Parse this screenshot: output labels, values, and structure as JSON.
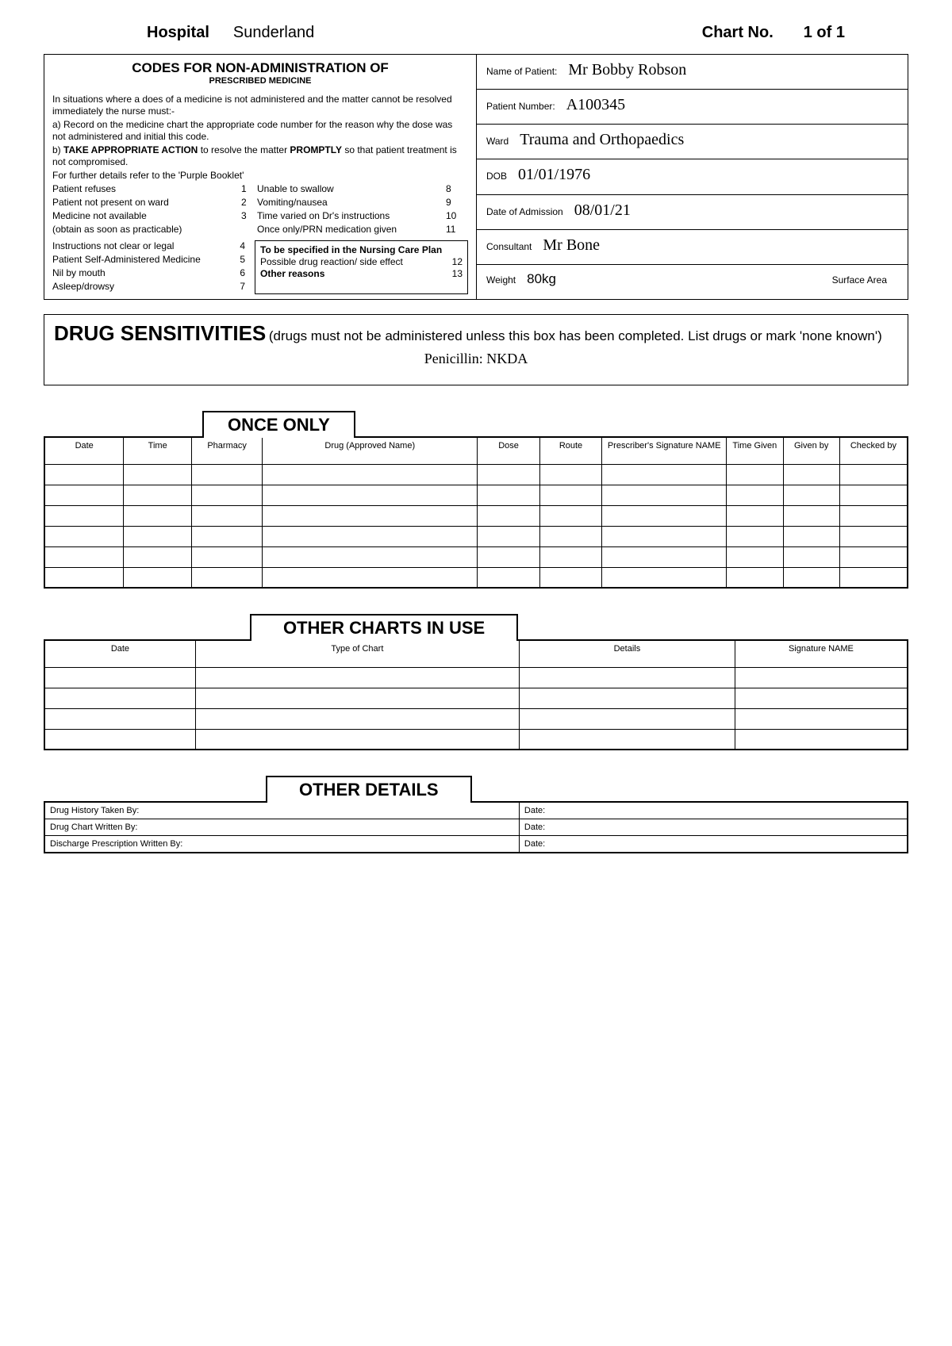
{
  "header": {
    "hospital_label": "Hospital",
    "hospital_value": "Sunderland",
    "chart_no_label": "Chart No.",
    "chart_no_value": "1 of 1"
  },
  "codes": {
    "title": "CODES FOR NON-ADMINISTRATION OF",
    "subtitle": "PRESCRIBED MEDICINE",
    "intro": "In situations where a does of a medicine is not administered and the matter cannot be resolved immediately the nurse must:-",
    "line_a": "a) Record on the medicine chart the appropriate code number for the reason why the dose was not administered and initial this code.",
    "line_b_pre": "b) ",
    "line_b_bold": "TAKE APPROPRIATE ACTION",
    "line_b_mid": " to resolve the matter ",
    "line_b_bold2": "PROMPTLY",
    "line_b_post": " so that patient treatment is not compromised.",
    "line_c": "For further details refer to the 'Purple Booklet'",
    "rows": [
      {
        "l": "Patient refuses",
        "ln": "1",
        "r": "Unable to swallow",
        "rn": "8"
      },
      {
        "l": "Patient not present on ward",
        "ln": "2",
        "r": "Vomiting/nausea",
        "rn": "9"
      },
      {
        "l": "Medicine not available",
        "ln": "3",
        "r": "Time varied on Dr's instructions",
        "rn": "10"
      },
      {
        "l": " (obtain as soon as practicable)",
        "ln": "",
        "r": "Once only/PRN medication given",
        "rn": "11"
      }
    ],
    "left_list": [
      {
        "t": "Instructions not clear  or legal",
        "n": "4"
      },
      {
        "t": "Patient Self-Administered Medicine",
        "n": "5"
      },
      {
        "t": "Nil by mouth",
        "n": "6"
      },
      {
        "t": "Asleep/drowsy",
        "n": "7"
      }
    ],
    "nursing_title": "To be specified in the Nursing Care Plan",
    "nursing_rows": [
      {
        "t": "Possible drug reaction/ side effect",
        "n": "12"
      },
      {
        "t": "Other reasons",
        "n": "13",
        "bold": true
      }
    ]
  },
  "patient": {
    "name_label": "Name of Patient:",
    "name_value": "Mr Bobby Robson",
    "number_label": "Patient Number:",
    "number_value": "A100345",
    "ward_label": "Ward",
    "ward_value": "Trauma and Orthopaedics",
    "dob_label": "DOB",
    "dob_value": "01/01/1976",
    "admission_label": "Date of Admission",
    "admission_value": "08/01/21",
    "consultant_label": "Consultant",
    "consultant_value": "Mr Bone",
    "weight_label": "Weight",
    "weight_value": "80kg",
    "surface_label": "Surface Area"
  },
  "sensitivities": {
    "title": "DRUG SENSITIVITIES",
    "sub": " (drugs must not be administered unless this box has been completed. List drugs or mark 'none known')",
    "value": "Penicillin: NKDA"
  },
  "once_only": {
    "tab": "ONCE ONLY",
    "columns": [
      "Date",
      "Time",
      "Pharmacy",
      "Drug (Approved Name)",
      "Dose",
      "Route",
      "Prescriber's Signature NAME",
      "Time Given",
      "Given by",
      "Checked by"
    ],
    "col_widths": [
      "70px",
      "60px",
      "60px",
      "190px",
      "55px",
      "55px",
      "110px",
      "50px",
      "50px",
      "60px"
    ],
    "empty_rows": 6
  },
  "other_charts": {
    "tab": "OTHER CHARTS IN USE",
    "columns": [
      "Date",
      "Type of Chart",
      "Details",
      "Signature NAME"
    ],
    "col_widths": [
      "140px",
      "300px",
      "200px",
      "160px"
    ],
    "empty_rows": 4
  },
  "other_details": {
    "tab": "OTHER DETAILS",
    "rows": [
      {
        "l": "Drug History Taken By:",
        "r": "Date:"
      },
      {
        "l": "Drug Chart Written By:",
        "r": "Date:"
      },
      {
        "l": "Discharge Prescription Written By:",
        "r": "Date:"
      }
    ]
  }
}
